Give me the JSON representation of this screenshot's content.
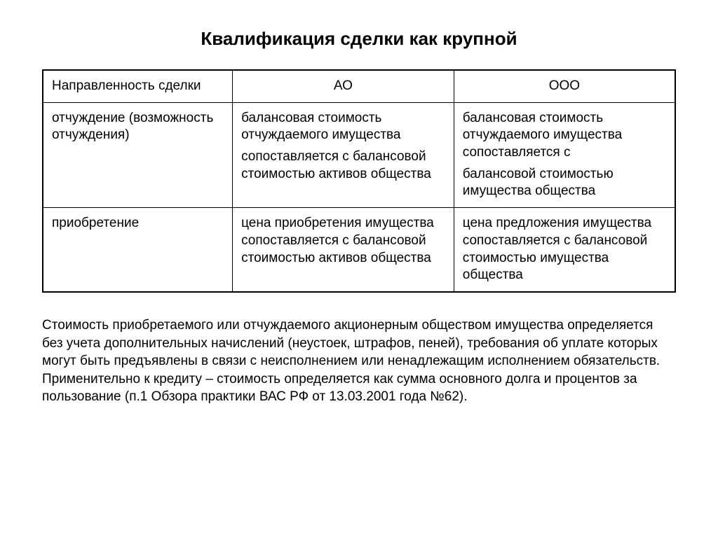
{
  "title": "Квалификация сделки как крупной",
  "table": {
    "columns": [
      "Направленность сделки",
      "АО",
      "ООО"
    ],
    "rows": [
      {
        "c0": "отчуждение (возможность отчуждения)",
        "c1a": "балансовая стоимость отчуждаемого имущества",
        "c1b": "сопоставляется с балансовой стоимостью активов общества",
        "c2a": "балансовая стоимость отчуждаемого имущества сопоставляется с",
        "c2b": "балансовой стоимостью имущества общества"
      },
      {
        "c0": "приобретение",
        "c1": "цена приобретения имущества сопоставляется с балансовой стоимостью активов общества",
        "c2": "цена предложения имущества сопоставляется с балансовой стоимостью имущества общества"
      }
    ]
  },
  "footnote": "Стоимость приобретаемого или отчуждаемого акционерным обществом имущества определяется без учета дополнительных начислений (неустоек, штрафов, пеней), требования об уплате которых могут быть предъявлены в связи с неисполнением или ненадлежащим исполнением обязательств. Применительно к кредиту – стоимость  определяется как сумма основного долга и процентов за пользование (п.1 Обзора практики ВАС РФ от 13.03.2001 года №62)."
}
